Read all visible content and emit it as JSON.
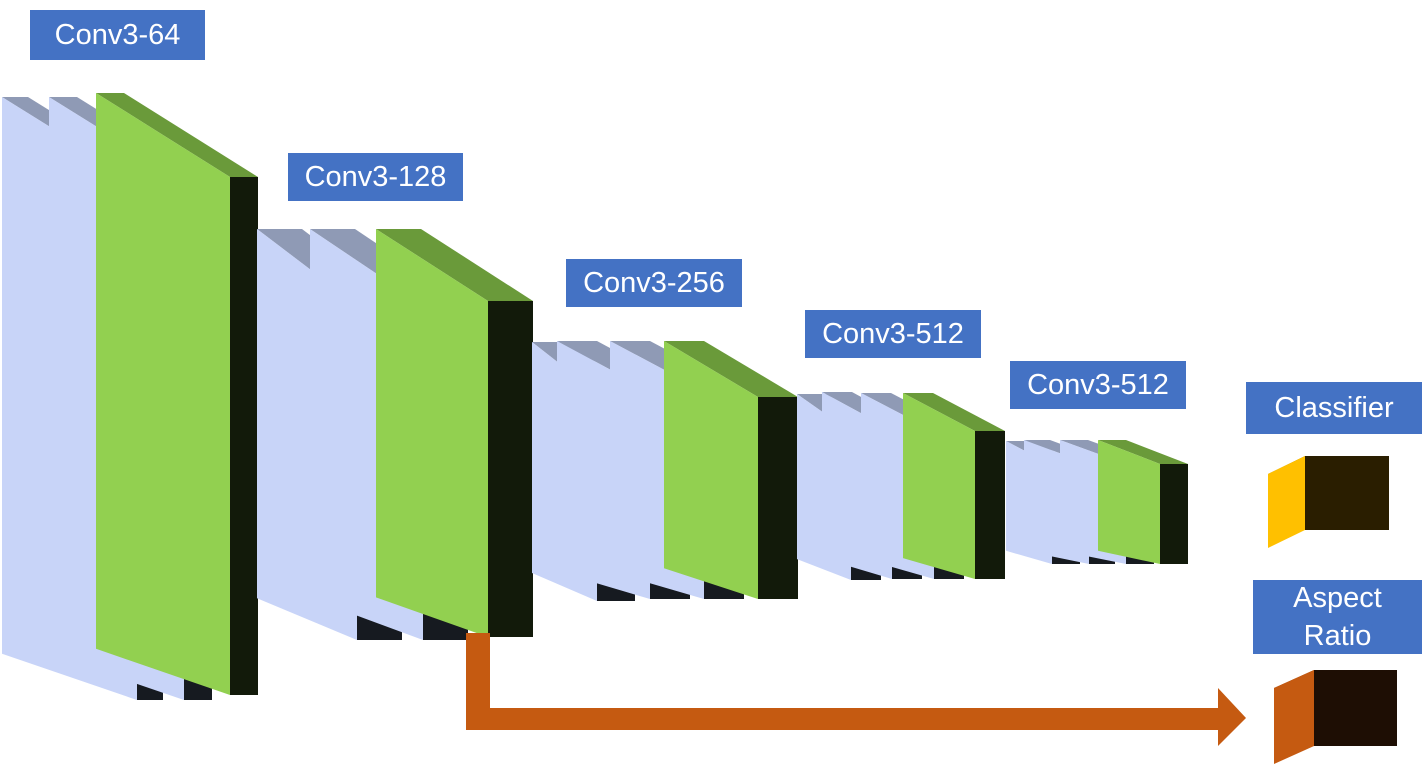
{
  "labels": {
    "block1": "Conv3-64",
    "block2": "Conv3-128",
    "block3": "Conv3-256",
    "block4": "Conv3-512",
    "block5": "Conv3-512",
    "classifier": "Classifier",
    "aspect_ratio_line1": "Aspect",
    "aspect_ratio_line2": "Ratio"
  },
  "colors": {
    "label_bg": "#4472c4",
    "label_text": "#ffffff",
    "conv_face": "#c8d4f8",
    "conv_top": "#8f9ab5",
    "conv_side": "#161a20",
    "pool_face": "#92d050",
    "pool_top": "#6a9a3a",
    "pool_side": "#121a0a",
    "classifier_face": "#ffc000",
    "classifier_top": "#b08400",
    "classifier_side": "#2a1e00",
    "aspect_face": "#c55a11",
    "aspect_top": "#8c3d0a",
    "aspect_side": "#1e0e04",
    "arrow": "#c55a11"
  }
}
